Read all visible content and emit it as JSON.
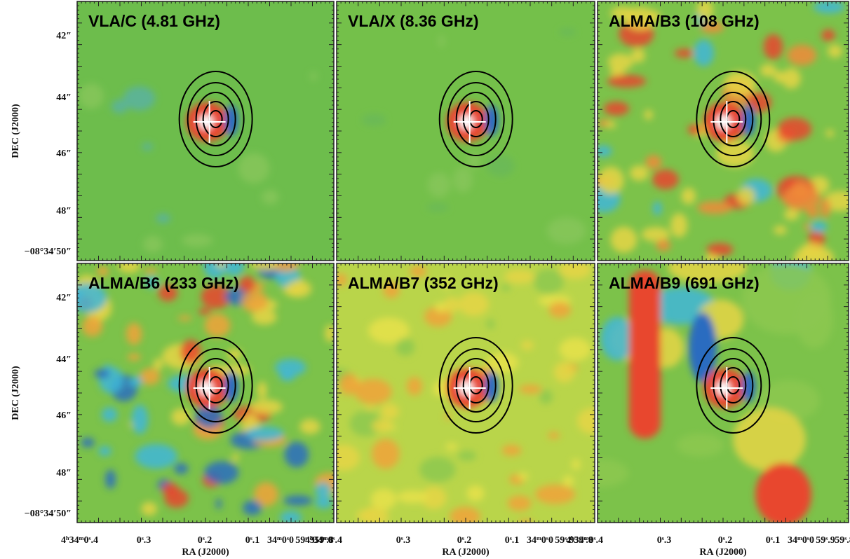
{
  "panels": [
    {
      "title": "VLA/C (4.81 GHz)"
    },
    {
      "title": "VLA/X (8.36 GHz)"
    },
    {
      "title": "ALMA/B3 (108 GHz)"
    },
    {
      "title": "ALMA/B6 (233 GHz)"
    },
    {
      "title": "ALMA/B7 (352 GHz)"
    },
    {
      "title": "ALMA/B9 (691 GHz)"
    }
  ],
  "y_axis": {
    "label": "DEC (J2000)",
    "ticks": [
      "42″",
      "44″",
      "46″",
      "48″",
      "−08°34′50″"
    ]
  },
  "x_axis": {
    "label": "RA (J2000)",
    "ticks": [
      "4ʰ34ᵐ0ˢ.4",
      "0ˢ.3",
      "0ˢ.2",
      "0ˢ.1",
      "34ᵐ0ˢ0",
      "59ˢ.9",
      "59ˢ.8"
    ]
  }
}
